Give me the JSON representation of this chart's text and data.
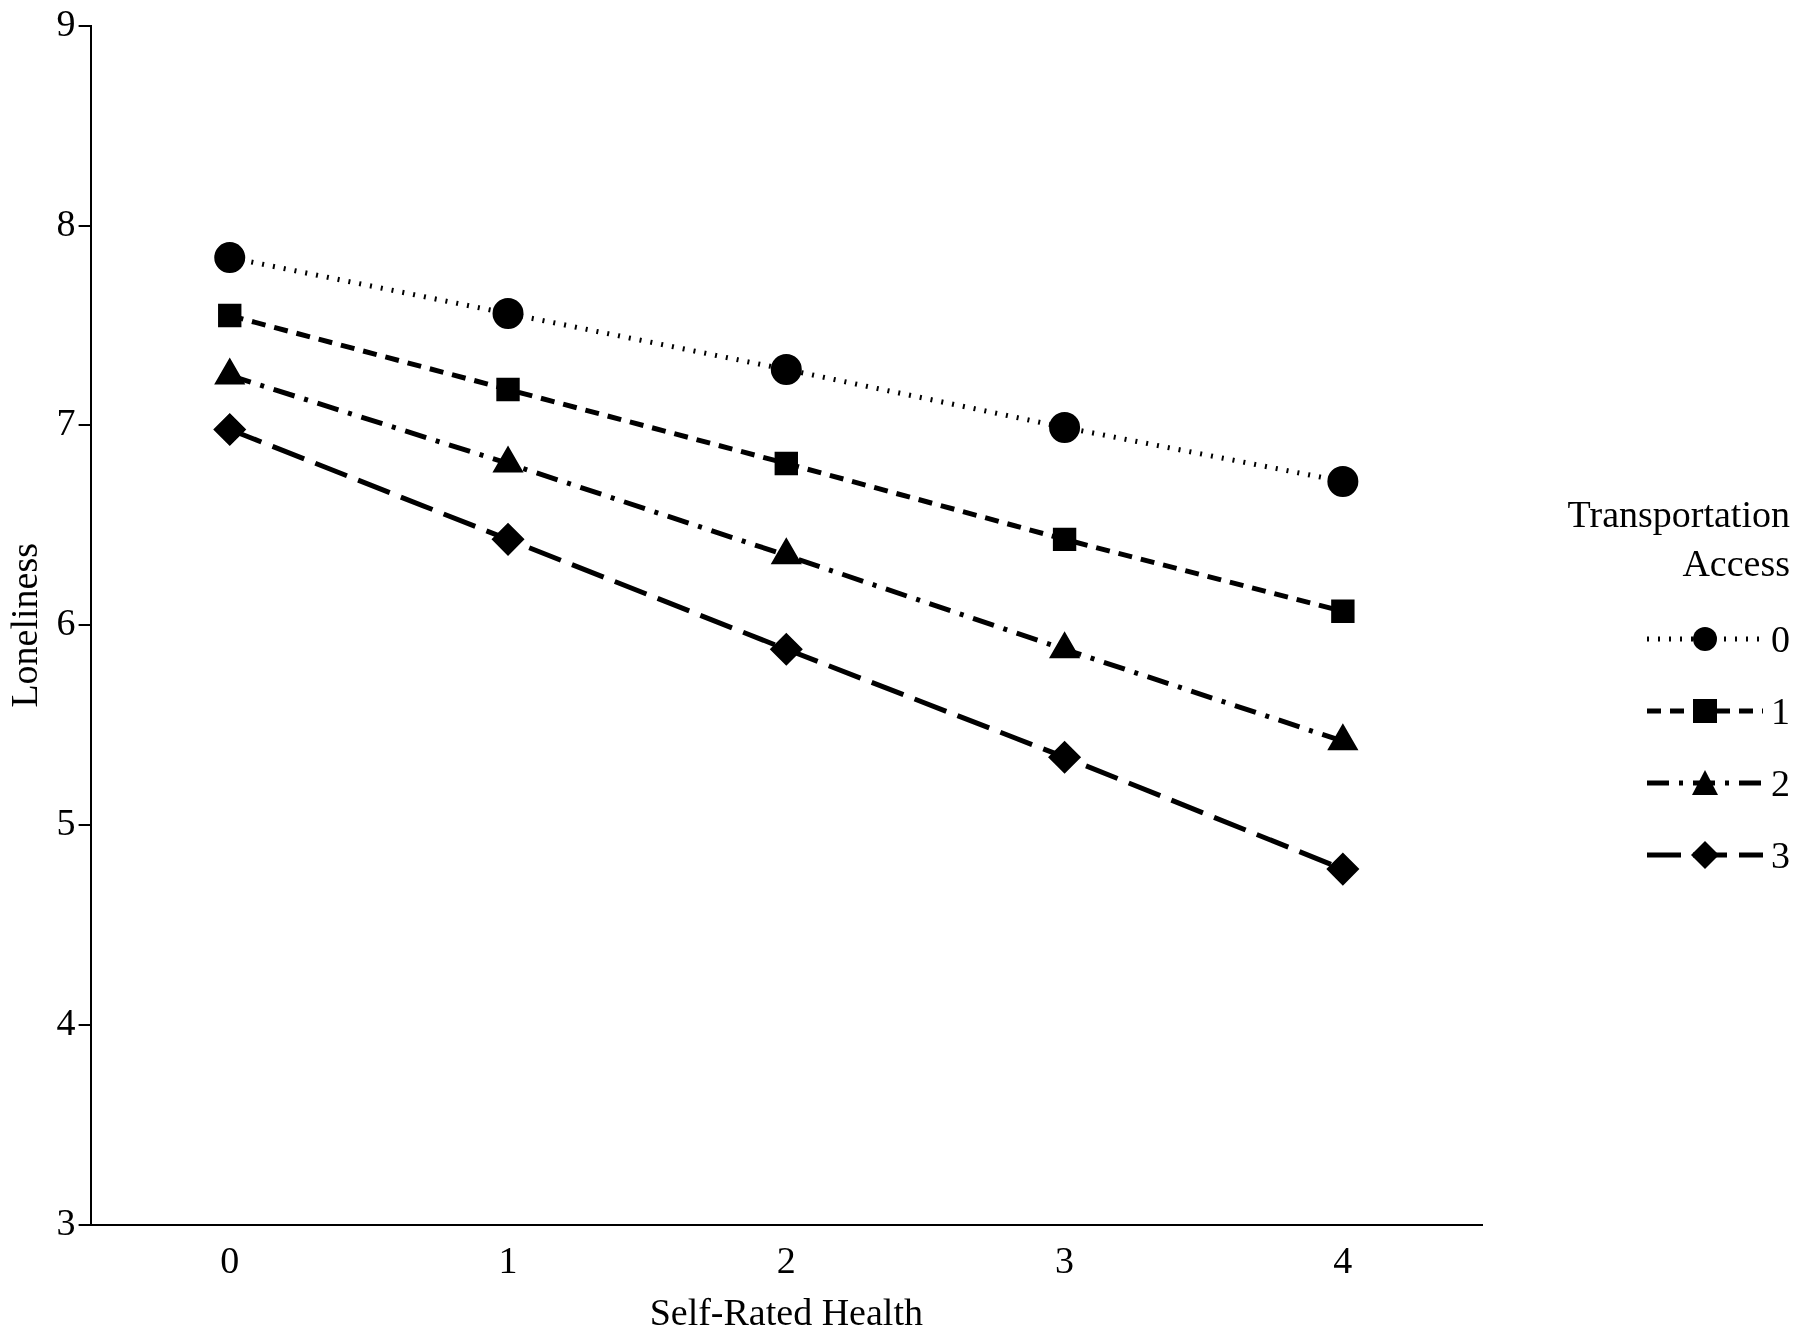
{
  "chart_data": {
    "type": "line",
    "xlabel": "Self-Rated Health",
    "ylabel": "Loneliness",
    "legend_title": "Transportation Access",
    "legend": "right",
    "grid": false,
    "categories": [
      "0",
      "1",
      "2",
      "3",
      "4"
    ],
    "ylim": [
      3,
      9
    ],
    "yticks": [
      3,
      4,
      5,
      6,
      7,
      8,
      9
    ],
    "series": [
      {
        "name": "0",
        "color": "#000000",
        "marker": "circle",
        "line_style": "dotted",
        "values": [
          7.84,
          7.56,
          7.28,
          6.99,
          6.72
        ]
      },
      {
        "name": "1",
        "color": "#000000",
        "marker": "square",
        "line_style": "dashed",
        "values": [
          7.55,
          7.18,
          6.81,
          6.43,
          6.07
        ]
      },
      {
        "name": "2",
        "color": "#000000",
        "marker": "triangle",
        "line_style": "dashdot",
        "values": [
          7.25,
          6.81,
          6.35,
          5.88,
          5.42
        ]
      },
      {
        "name": "3",
        "color": "#000000",
        "marker": "diamond",
        "line_style": "longdash",
        "values": [
          6.98,
          6.43,
          5.88,
          5.34,
          4.78
        ]
      }
    ]
  }
}
